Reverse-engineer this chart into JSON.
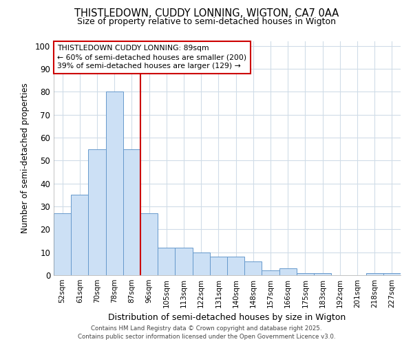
{
  "title1": "THISTLEDOWN, CUDDY LONNING, WIGTON, CA7 0AA",
  "title2": "Size of property relative to semi-detached houses in Wigton",
  "xlabel": "Distribution of semi-detached houses by size in Wigton",
  "ylabel": "Number of semi-detached properties",
  "categories": [
    "52sqm",
    "61sqm",
    "70sqm",
    "78sqm",
    "87sqm",
    "96sqm",
    "105sqm",
    "113sqm",
    "122sqm",
    "131sqm",
    "140sqm",
    "148sqm",
    "157sqm",
    "166sqm",
    "175sqm",
    "183sqm",
    "192sqm",
    "201sqm",
    "218sqm",
    "227sqm"
  ],
  "values": [
    27,
    35,
    55,
    80,
    55,
    27,
    12,
    12,
    10,
    8,
    8,
    6,
    2,
    3,
    1,
    1,
    0,
    0,
    1,
    1
  ],
  "bar_color": "#cce0f5",
  "bar_edge_color": "#6699cc",
  "vline_color": "#cc0000",
  "annotation_title": "THISTLEDOWN CUDDY LONNING: 89sqm",
  "annotation_line1": "← 60% of semi-detached houses are smaller (200)",
  "annotation_line2": "39% of semi-detached houses are larger (129) →",
  "annotation_box_color": "#cc0000",
  "ylim": [
    0,
    102
  ],
  "yticks": [
    0,
    10,
    20,
    30,
    40,
    50,
    60,
    70,
    80,
    90,
    100
  ],
  "footer1": "Contains HM Land Registry data © Crown copyright and database right 2025.",
  "footer2": "Contains public sector information licensed under the Open Government Licence v3.0.",
  "bg_color": "#ffffff",
  "plot_bg_color": "#ffffff",
  "grid_color": "#d0dce8"
}
